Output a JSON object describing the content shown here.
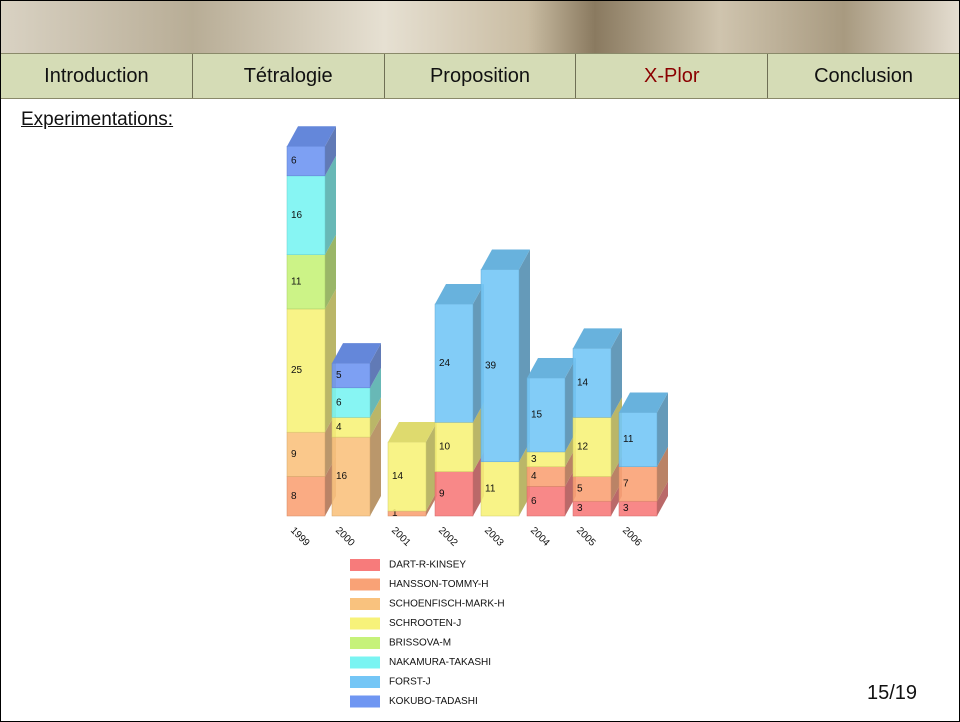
{
  "nav": [
    "Introduction",
    "Tétralogie",
    "Proposition",
    "X-Plor",
    "Conclusion"
  ],
  "active_tab": "X-Plor",
  "section_heading": "Experimentations:",
  "page_number": "15/19",
  "chart_data": {
    "type": "stacked-bar-3d",
    "categories": [
      "1999",
      "2000",
      "2001",
      "2002",
      "2003",
      "2004",
      "2005",
      "2006"
    ],
    "series": [
      {
        "name": "DART-R-KINSEY",
        "color": "#f77b7b",
        "values": [
          null,
          null,
          null,
          9,
          null,
          6,
          3,
          3
        ]
      },
      {
        "name": "HANSSON-TOMMY-H",
        "color": "#f9a276",
        "values": [
          8,
          null,
          1,
          null,
          null,
          4,
          5,
          7
        ]
      },
      {
        "name": "SCHOENFISCH-MARK-H",
        "color": "#f9c27e",
        "values": [
          9,
          16,
          null,
          null,
          null,
          null,
          null,
          null
        ]
      },
      {
        "name": "SCHROOTEN-J",
        "color": "#f7f27a",
        "values": [
          25,
          4,
          14,
          10,
          11,
          3,
          12,
          null
        ]
      },
      {
        "name": "BRISSOVA-M",
        "color": "#c6f27a",
        "values": [
          11,
          null,
          null,
          null,
          null,
          null,
          null,
          null
        ]
      },
      {
        "name": "NAKAMURA-TAKASHI",
        "color": "#7af4f2",
        "values": [
          16,
          6,
          null,
          null,
          null,
          null,
          null,
          null
        ]
      },
      {
        "name": "FORST-J",
        "color": "#74c6f6",
        "values": [
          null,
          null,
          null,
          24,
          39,
          15,
          14,
          11
        ]
      },
      {
        "name": "KOKUBO-TADASHI",
        "color": "#6f96f2",
        "values": [
          6,
          5,
          null,
          null,
          null,
          null,
          null,
          null
        ]
      }
    ]
  }
}
